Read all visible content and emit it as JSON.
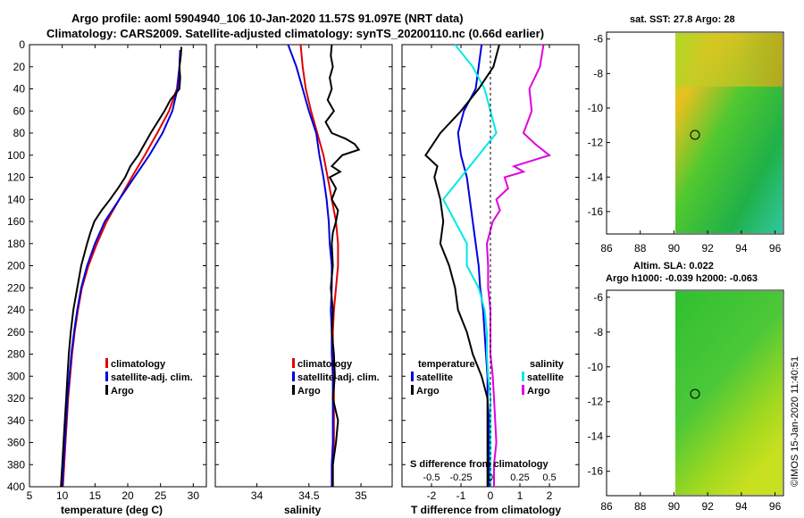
{
  "title": {
    "line1": "Argo profile: aoml 5904940_106 10-Jan-2020 11.57S 91.097E (NRT data)",
    "line2": "Climatology: CARS2009. Satellite-adjusted climatology: synTS_20200110.nc (0.66d earlier)"
  },
  "depth_ticks": [
    "0",
    "20",
    "40",
    "60",
    "80",
    "100",
    "120",
    "140",
    "160",
    "180",
    "200",
    "220",
    "240",
    "260",
    "280",
    "300",
    "320",
    "340",
    "360",
    "380",
    "400"
  ],
  "legend": {
    "climatology": "climatology",
    "satellite_adj": "satellite-adj. clim.",
    "argo": "Argo",
    "temperature_header": "temperature",
    "salinity_header": "salinity",
    "satellite": "satellite"
  },
  "colors": {
    "red": "#e00000",
    "blue": "#0000dd",
    "black": "#000000",
    "cyan": "#00e8e8",
    "magenta": "#e000e0"
  },
  "side_panels": {
    "sst_title": "sat. SST: 27.8 Argo: 28",
    "sla_title": "Altim. SLA: 0.022",
    "sla_subtitle": "Argo h1000: -0.039 h2000: -0.063",
    "lat_ticks": [
      "-6",
      "-8",
      "-10",
      "-12",
      "-14",
      "-16"
    ],
    "lon_ticks": [
      "86",
      "88",
      "90",
      "92",
      "94",
      "96"
    ],
    "credit": "©IMOS 15-Jan-2020 11:40:51"
  },
  "chart_data": [
    {
      "type": "line",
      "panel": "temperature",
      "xlabel": "temperature (deg C)",
      "ylabel": "depth",
      "xlim": [
        5,
        32
      ],
      "ylim": [
        400,
        0
      ],
      "xticks": [
        "5",
        "10",
        "15",
        "20",
        "25",
        "30"
      ],
      "series": [
        {
          "name": "climatology",
          "color": "#e00000",
          "depth": [
            5,
            20,
            40,
            60,
            80,
            100,
            120,
            140,
            160,
            180,
            200,
            220,
            240,
            260,
            280,
            300,
            320,
            340,
            360,
            380,
            400
          ],
          "values": [
            28.0,
            27.9,
            27.5,
            26.3,
            24.5,
            22.6,
            20.6,
            18.7,
            16.8,
            15.3,
            14.0,
            13.0,
            12.4,
            11.9,
            11.5,
            11.2,
            10.9,
            10.7,
            10.5,
            10.3,
            10.1
          ]
        },
        {
          "name": "satellite-adj. clim.",
          "color": "#0000dd",
          "depth": [
            5,
            20,
            40,
            60,
            80,
            100,
            120,
            140,
            160,
            180,
            200,
            220,
            240,
            260,
            280,
            300,
            320,
            340,
            360,
            380,
            400
          ],
          "values": [
            28.0,
            27.9,
            27.6,
            26.8,
            25.3,
            23.3,
            21.0,
            18.7,
            16.5,
            15.0,
            13.8,
            12.9,
            12.3,
            11.8,
            11.4,
            11.1,
            10.8,
            10.6,
            10.4,
            10.2,
            10.0
          ]
        },
        {
          "name": "Argo",
          "color": "#000000",
          "depth": [
            2,
            10,
            20,
            30,
            40,
            50,
            60,
            80,
            100,
            110,
            120,
            130,
            140,
            150,
            160,
            170,
            180,
            200,
            220,
            240,
            260,
            280,
            300,
            320,
            340,
            360,
            380,
            400
          ],
          "values": [
            28.2,
            28.1,
            27.9,
            28.0,
            27.9,
            26.5,
            25.6,
            23.5,
            21.6,
            20.4,
            19.6,
            18.5,
            17.3,
            16.0,
            14.9,
            14.3,
            13.8,
            12.9,
            12.3,
            11.7,
            11.3,
            11.0,
            10.8,
            10.6,
            10.4,
            10.2,
            10.0,
            9.8
          ]
        }
      ]
    },
    {
      "type": "line",
      "panel": "salinity",
      "xlabel": "salinity",
      "ylabel": "depth",
      "xlim": [
        33.6,
        35.3
      ],
      "ylim": [
        400,
        0
      ],
      "xticks": [
        "34",
        "34.5",
        "35"
      ],
      "series": [
        {
          "name": "climatology",
          "color": "#e00000",
          "depth": [
            0,
            20,
            40,
            60,
            80,
            100,
            120,
            140,
            160,
            180,
            200,
            220,
            240,
            260,
            280,
            300,
            320,
            340,
            360,
            380,
            400
          ],
          "values": [
            34.42,
            34.44,
            34.47,
            34.52,
            34.58,
            34.64,
            34.68,
            34.72,
            34.76,
            34.78,
            34.78,
            34.76,
            34.74,
            34.73,
            34.73,
            34.74,
            34.74,
            34.74,
            34.74,
            34.73,
            34.73
          ]
        },
        {
          "name": "satellite-adj. clim.",
          "color": "#0000dd",
          "depth": [
            0,
            20,
            40,
            60,
            80,
            100,
            120,
            140,
            160,
            180,
            200,
            220,
            240,
            260,
            280,
            300,
            320,
            340,
            360,
            380,
            400
          ],
          "values": [
            34.3,
            34.38,
            34.44,
            34.5,
            34.57,
            34.6,
            34.64,
            34.67,
            34.69,
            34.7,
            34.72,
            34.72,
            34.71,
            34.72,
            34.72,
            34.73,
            34.73,
            34.73,
            34.73,
            34.72,
            34.72
          ]
        },
        {
          "name": "Argo",
          "color": "#000000",
          "depth": [
            0,
            10,
            20,
            30,
            40,
            50,
            60,
            70,
            80,
            85,
            90,
            95,
            100,
            110,
            115,
            120,
            130,
            140,
            150,
            160,
            170,
            180,
            200,
            220,
            240,
            260,
            280,
            300,
            320,
            340,
            360,
            380,
            400
          ],
          "values": [
            34.72,
            34.71,
            34.73,
            34.7,
            34.72,
            34.68,
            34.74,
            34.66,
            34.72,
            34.85,
            34.94,
            34.98,
            34.82,
            34.72,
            34.8,
            34.7,
            34.76,
            34.72,
            34.78,
            34.76,
            34.73,
            34.72,
            34.73,
            34.71,
            34.73,
            34.72,
            34.74,
            34.75,
            34.73,
            34.78,
            34.76,
            34.73,
            34.73
          ]
        }
      ]
    },
    {
      "type": "line",
      "panel": "difference",
      "xlabel": "T difference from climatology",
      "top_label": "S difference from climatology",
      "xlim": [
        -3,
        3
      ],
      "ylim": [
        400,
        0
      ],
      "xticks": [
        "-2",
        "-1",
        "0",
        "1",
        "2"
      ],
      "sticks": [
        "-0.5",
        "-0.25",
        "0",
        "0.25",
        "0.5"
      ],
      "series": [
        {
          "name": "temperature satellite",
          "color": "#0000dd",
          "depth": [
            0,
            20,
            40,
            60,
            80,
            100,
            120,
            140,
            160,
            180,
            200,
            220,
            240,
            260,
            280,
            300,
            320,
            340,
            360,
            380,
            400
          ],
          "values": [
            -0.3,
            -0.4,
            -0.5,
            -0.9,
            -1.1,
            -1.0,
            -0.8,
            -0.7,
            -0.6,
            -0.5,
            -0.4,
            -0.35,
            -0.25,
            -0.2,
            -0.15,
            -0.1,
            -0.1,
            -0.05,
            -0.05,
            -0.05,
            -0.05
          ]
        },
        {
          "name": "salinity satellite",
          "color": "#00e8e8",
          "depth": [
            0,
            20,
            40,
            60,
            80,
            100,
            120,
            140,
            160,
            180,
            200,
            220,
            240,
            260,
            280,
            300,
            320,
            340,
            360,
            380,
            400
          ],
          "values": [
            -0.3,
            -0.15,
            -0.05,
            0.0,
            0.05,
            -0.1,
            -0.25,
            -0.4,
            -0.3,
            -0.2,
            -0.2,
            -0.1,
            -0.05,
            -0.03,
            -0.03,
            -0.02,
            0.0,
            0.0,
            0.0,
            0.0,
            0.0
          ]
        },
        {
          "name": "temperature Argo",
          "color": "#000000",
          "depth": [
            0,
            20,
            40,
            60,
            80,
            100,
            110,
            120,
            140,
            160,
            180,
            200,
            220,
            240,
            260,
            280,
            300,
            320,
            340,
            360,
            380,
            400
          ],
          "values": [
            0.3,
            0.1,
            -0.4,
            -1.0,
            -1.7,
            -2.2,
            -1.8,
            -1.9,
            -1.7,
            -1.6,
            -1.7,
            -1.4,
            -1.2,
            -1.1,
            -0.8,
            -0.6,
            -0.3,
            -0.1,
            -0.1,
            -0.1,
            -0.1,
            -0.1
          ]
        },
        {
          "name": "salinity Argo",
          "color": "#e000e0",
          "depth": [
            0,
            20,
            40,
            60,
            80,
            90,
            100,
            110,
            115,
            120,
            130,
            140,
            150,
            160,
            180,
            200,
            220,
            240,
            260,
            280,
            300,
            320,
            340,
            360,
            380,
            400
          ],
          "values": [
            0.45,
            0.42,
            0.33,
            0.35,
            0.28,
            0.38,
            0.5,
            0.2,
            0.28,
            0.12,
            0.15,
            0.05,
            0.08,
            0.02,
            -0.03,
            -0.02,
            -0.02,
            0.0,
            0.0,
            0.0,
            0.02,
            0.03,
            0.04,
            0.05,
            0.03,
            0.03
          ]
        }
      ]
    }
  ]
}
